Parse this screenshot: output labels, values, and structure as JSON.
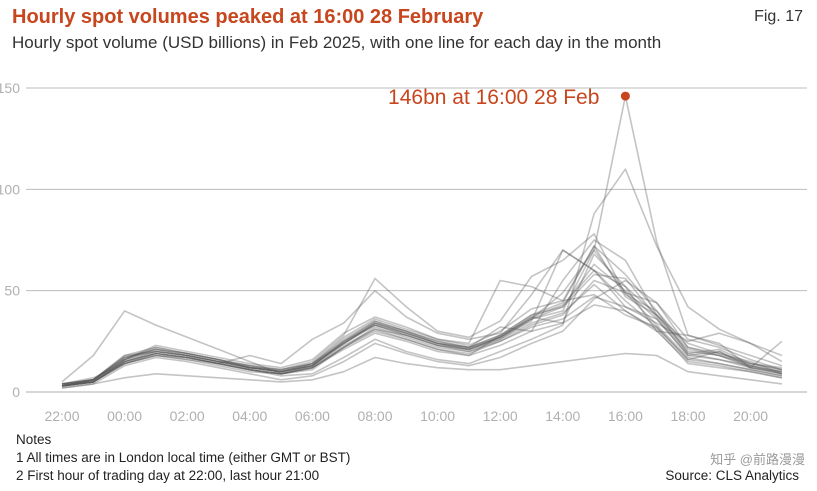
{
  "header": {
    "title": "Hourly spot volumes peaked at 16:00 28 February",
    "figure_label": "Fig. 17",
    "subtitle": "Hourly spot volume (USD billions) in Feb 2025, with one line for each day in the month"
  },
  "notes": {
    "heading": "Notes",
    "lines": [
      "1 All times are in London local time (either GMT or BST)",
      "2 First hour of trading day at 22:00, last hour 21:00"
    ]
  },
  "source": "Source: CLS Analytics",
  "watermark": "知乎 @前路漫漫",
  "colors": {
    "title": "#c7461d",
    "annotation": "#c7461d",
    "lines": "#555555",
    "grid": "#bdbdbd"
  },
  "chart_data": {
    "type": "line",
    "title": "",
    "xlabel": "",
    "ylabel": "",
    "x": [
      22,
      23,
      0,
      1,
      2,
      3,
      4,
      5,
      6,
      7,
      8,
      9,
      10,
      11,
      12,
      13,
      14,
      15,
      16,
      17,
      18,
      19,
      20,
      21
    ],
    "x_tick_labels": [
      "22:00",
      "00:00",
      "02:00",
      "04:00",
      "06:00",
      "08:00",
      "10:00",
      "12:00",
      "14:00",
      "16:00",
      "18:00",
      "20:00"
    ],
    "ylim": [
      0,
      150
    ],
    "y_ticks": [
      0,
      50,
      100,
      150
    ],
    "grid": "horizontal",
    "annotation": {
      "text": "146bn at 16:00 28 Feb",
      "x": 16,
      "y": 146
    },
    "series": [
      {
        "values": [
          5,
          18,
          40,
          33,
          27,
          21,
          15,
          9,
          11,
          22,
          31,
          26,
          21,
          18,
          28,
          36,
          49,
          70,
          146,
          74,
          28,
          23,
          18,
          13
        ]
      },
      {
        "values": [
          4,
          7,
          14,
          19,
          17,
          14,
          11,
          8,
          9,
          17,
          26,
          20,
          16,
          14,
          20,
          26,
          33,
          88,
          110,
          72,
          42,
          31,
          24,
          15
        ]
      },
      {
        "values": [
          2,
          4,
          13,
          17,
          15,
          12,
          9,
          6,
          8,
          15,
          24,
          19,
          15,
          13,
          17,
          24,
          30,
          46,
          55,
          44,
          22,
          19,
          15,
          9
        ]
      },
      {
        "values": [
          2,
          4,
          7,
          9,
          8,
          7,
          6,
          5,
          6,
          10,
          17,
          14,
          12,
          11,
          11,
          13,
          15,
          17,
          19,
          18,
          10,
          8,
          6,
          4
        ]
      },
      {
        "values": [
          3,
          6,
          18,
          22,
          19,
          16,
          13,
          11,
          14,
          24,
          33,
          28,
          23,
          21,
          27,
          35,
          70,
          60,
          45,
          32,
          16,
          20,
          13,
          10
        ]
      },
      {
        "values": [
          3,
          5,
          16,
          23,
          20,
          17,
          14,
          12,
          16,
          29,
          37,
          32,
          26,
          23,
          30,
          41,
          45,
          72,
          58,
          40,
          19,
          21,
          14,
          11
        ]
      },
      {
        "values": [
          4,
          6,
          17,
          21,
          18,
          15,
          12,
          10,
          13,
          25,
          34,
          30,
          24,
          22,
          28,
          38,
          42,
          63,
          50,
          36,
          18,
          16,
          12,
          9
        ]
      },
      {
        "values": [
          3,
          5,
          14,
          18,
          16,
          13,
          10,
          9,
          12,
          22,
          30,
          26,
          21,
          19,
          25,
          33,
          38,
          55,
          49,
          33,
          17,
          14,
          11,
          8
        ]
      },
      {
        "values": [
          3,
          5,
          15,
          19,
          17,
          14,
          11,
          9,
          12,
          23,
          31,
          28,
          23,
          20,
          26,
          34,
          39,
          53,
          40,
          30,
          15,
          13,
          10,
          7
        ]
      },
      {
        "values": [
          3,
          6,
          16,
          22,
          19,
          16,
          12,
          10,
          14,
          27,
          36,
          31,
          26,
          24,
          55,
          52,
          45,
          48,
          38,
          32,
          16,
          14,
          11,
          8
        ]
      },
      {
        "values": [
          4,
          6,
          18,
          20,
          18,
          15,
          12,
          11,
          15,
          28,
          56,
          42,
          30,
          27,
          35,
          57,
          65,
          78,
          48,
          40,
          22,
          18,
          13,
          10
        ]
      },
      {
        "values": [
          3,
          5,
          14,
          18,
          16,
          14,
          18,
          14,
          26,
          34,
          50,
          37,
          29,
          26,
          29,
          48,
          70,
          60,
          42,
          36,
          18,
          20,
          12,
          9
        ]
      },
      {
        "values": [
          3,
          6,
          17,
          20,
          18,
          15,
          12,
          10,
          13,
          24,
          34,
          29,
          24,
          21,
          26,
          36,
          40,
          70,
          49,
          44,
          26,
          22,
          16,
          11
        ]
      },
      {
        "values": [
          4,
          5,
          15,
          19,
          17,
          14,
          11,
          9,
          12,
          22,
          32,
          27,
          22,
          20,
          25,
          32,
          36,
          47,
          42,
          34,
          25,
          29,
          24,
          18
        ]
      },
      {
        "values": [
          3,
          6,
          17,
          21,
          19,
          16,
          12,
          10,
          14,
          26,
          35,
          30,
          25,
          22,
          27,
          37,
          34,
          68,
          52,
          30,
          28,
          24,
          12,
          10
        ]
      },
      {
        "values": [
          3,
          5,
          14,
          18,
          17,
          14,
          11,
          9,
          12,
          21,
          29,
          25,
          20,
          18,
          23,
          30,
          34,
          43,
          40,
          31,
          14,
          12,
          10,
          7
        ]
      },
      {
        "values": [
          4,
          6,
          16,
          20,
          18,
          15,
          13,
          10,
          13,
          25,
          33,
          29,
          24,
          22,
          32,
          30,
          55,
          75,
          65,
          38,
          21,
          18,
          14,
          12
        ]
      },
      {
        "values": [
          3,
          5,
          15,
          19,
          17,
          14,
          11,
          9,
          13,
          24,
          33,
          28,
          23,
          21,
          27,
          36,
          42,
          58,
          56,
          37,
          19,
          16,
          13,
          9
        ]
      },
      {
        "values": [
          3,
          5,
          15,
          20,
          18,
          15,
          12,
          10,
          13,
          24,
          34,
          29,
          24,
          21,
          27,
          37,
          43,
          60,
          52,
          38,
          20,
          18,
          12,
          25
        ]
      },
      {
        "values": [
          4,
          6,
          16,
          21,
          19,
          16,
          13,
          11,
          14,
          25,
          35,
          30,
          25,
          22,
          28,
          38,
          44,
          72,
          47,
          38,
          24,
          19,
          14,
          11
        ]
      }
    ]
  }
}
